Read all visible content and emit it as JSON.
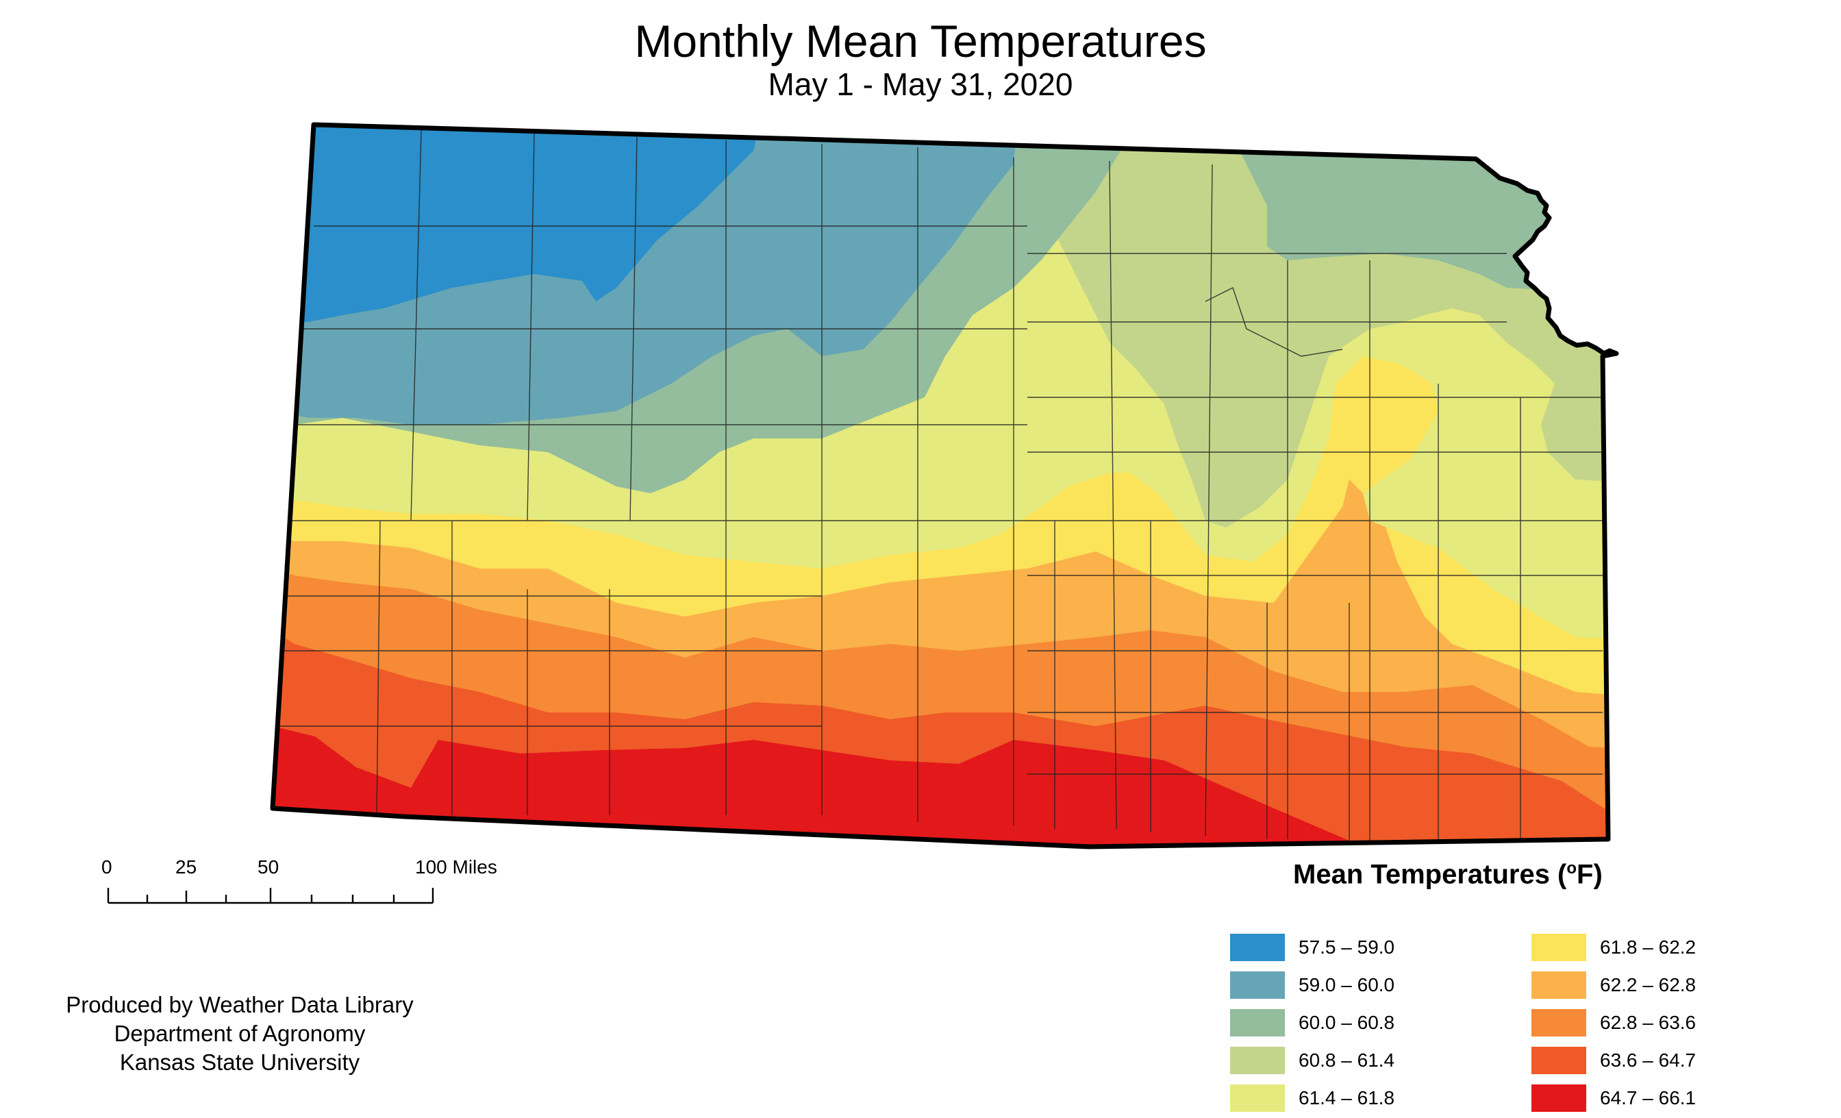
{
  "map": {
    "title": "Monthly Mean Temperatures",
    "subtitle": "May 1 - May 31, 2020"
  },
  "legend": {
    "title": "Mean Temperatures (",
    "unit_symbol": "o",
    "unit_suffix": "F)",
    "classes": [
      {
        "label": "57.5 – 59.0",
        "color": "#2a8fca"
      },
      {
        "label": "59.0 – 60.0",
        "color": "#66a5b5"
      },
      {
        "label": "60.0 – 60.8",
        "color": "#93bd9d"
      },
      {
        "label": "60.8 – 61.4",
        "color": "#c3d58b"
      },
      {
        "label": "61.4 – 61.8",
        "color": "#e4ea7d"
      },
      {
        "label": "61.8 – 62.2",
        "color": "#fbe35a"
      },
      {
        "label": "62.2 – 62.8",
        "color": "#fbb24a"
      },
      {
        "label": "62.8 – 63.6",
        "color": "#f78a36"
      },
      {
        "label": "63.6 – 64.7",
        "color": "#ef5a28"
      },
      {
        "label": "64.7 – 66.1",
        "color": "#e3181a"
      }
    ]
  },
  "scale_bar": {
    "ticks": [
      "0",
      "25",
      "50",
      "100 Miles"
    ]
  },
  "credit": {
    "line1": "Produced by Weather Data Library",
    "line2": "Department of Agronomy",
    "line3": "Kansas State University"
  }
}
